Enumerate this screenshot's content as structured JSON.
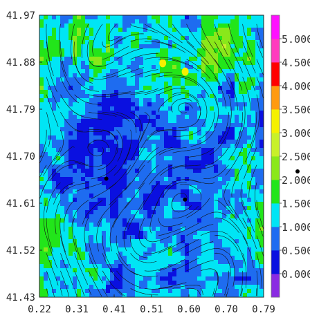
{
  "chart_data": {
    "type": "heatmap",
    "title": "",
    "xlabel": "",
    "ylabel": "",
    "x_ticks": [
      "0.22",
      "0.31",
      "0.41",
      "0.51",
      "0.60",
      "0.70",
      "0.79"
    ],
    "y_ticks": [
      "41.97",
      "41.88",
      "41.79",
      "41.70",
      "41.61",
      "41.52",
      "41.43"
    ],
    "xlim": [
      0.22,
      0.79
    ],
    "ylim": [
      41.43,
      41.97
    ],
    "overlay": "streamlines",
    "colorbar": {
      "labels": [
        "0.000",
        "0.500",
        "1.000",
        "1.500",
        "2.000",
        "2.500",
        "3.000",
        "3.500",
        "4.000",
        "4.500",
        "5.000"
      ],
      "range": [
        -0.5,
        5.5
      ],
      "colors": [
        "#8a2be2",
        "#0a10e0",
        "#1e6cf0",
        "#00e5f5",
        "#22e51a",
        "#8ae81a",
        "#c8f02a",
        "#f5f000",
        "#ff9a10",
        "#ff0000",
        "#ff3cbe",
        "#ff10ff"
      ]
    },
    "markers": [
      {
        "x": 0.39,
        "y": 41.657
      },
      {
        "x": 0.59,
        "y": 41.617
      }
    ]
  }
}
